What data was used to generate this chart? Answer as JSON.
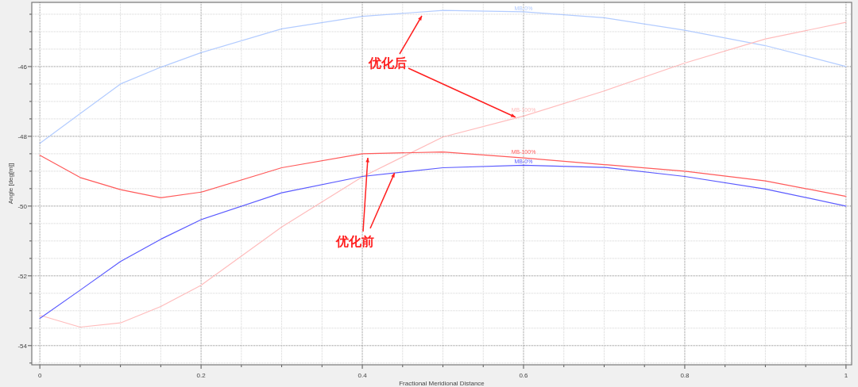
{
  "chart_data": {
    "type": "line",
    "xlabel": "Fractional Meridional Distance",
    "ylabel": "Angle [deg[m]]",
    "x": [
      0,
      0.05,
      0.1,
      0.15,
      0.2,
      0.3,
      0.4,
      0.5,
      0.6,
      0.7,
      0.8,
      0.9,
      1
    ],
    "series": [
      {
        "name": "MB-0%",
        "color": "#b3ccff",
        "values": [
          -48.2,
          -47.35,
          -46.5,
          -46.02,
          -45.6,
          -44.92,
          -44.56,
          -44.39,
          -44.43,
          -44.6,
          -44.96,
          -45.4,
          -46.0
        ]
      },
      {
        "name": "MB-100%",
        "color": "#ffbcbc",
        "values": [
          -53.13,
          -53.47,
          -53.35,
          -52.88,
          -52.27,
          -50.6,
          -49.16,
          -48.02,
          -47.42,
          -46.7,
          -45.9,
          -45.21,
          -44.73
        ]
      },
      {
        "name": "MB-100%",
        "color": "#ff5a5a",
        "values": [
          -48.54,
          -49.18,
          -49.53,
          -49.76,
          -49.6,
          -48.9,
          -48.5,
          -48.45,
          -48.62,
          -48.81,
          -49.0,
          -49.28,
          -49.72
        ]
      },
      {
        "name": "MB-0%",
        "color": "#5a5aff",
        "values": [
          -53.22,
          -52.41,
          -51.59,
          -50.95,
          -50.39,
          -49.62,
          -49.15,
          -48.9,
          -48.83,
          -48.89,
          -49.15,
          -49.51,
          -50.0
        ]
      }
    ],
    "xlim": [
      -0.01,
      1.007
    ],
    "ylim": [
      -54.55,
      -44.16
    ],
    "xticks": [
      0,
      {
        "value": 0.05,
        "label": null
      },
      {
        "value": 0.1,
        "label": null
      },
      {
        "value": 0.15,
        "label": null
      },
      0.2,
      {
        "value": 0.25,
        "label": null
      },
      {
        "value": 0.3,
        "label": null
      },
      {
        "value": 0.35,
        "label": null
      },
      0.4,
      {
        "value": 0.45,
        "label": null
      },
      {
        "value": 0.5,
        "label": null
      },
      {
        "value": 0.55,
        "label": null
      },
      0.6,
      {
        "value": 0.65,
        "label": null
      },
      {
        "value": 0.7,
        "label": null
      },
      {
        "value": 0.75,
        "label": null
      },
      0.8,
      {
        "value": 0.85,
        "label": null
      },
      {
        "value": 0.9,
        "label": null
      },
      {
        "value": 0.95,
        "label": null
      },
      1
    ],
    "yticks": [
      {
        "value": -54.5,
        "label": null
      },
      -54,
      {
        "value": -53.5,
        "label": null
      },
      {
        "value": -53,
        "label": null
      },
      {
        "value": -52.5,
        "label": null
      },
      -52,
      {
        "value": -51.5,
        "label": null
      },
      {
        "value": -51,
        "label": null
      },
      {
        "value": -50.5,
        "label": null
      },
      -50,
      {
        "value": -49.5,
        "label": null
      },
      {
        "value": -49,
        "label": null
      },
      {
        "value": -48.5,
        "label": null
      },
      -48,
      {
        "value": -47.5,
        "label": null
      },
      {
        "value": -47,
        "label": null
      },
      {
        "value": -46.5,
        "label": null
      },
      -46,
      {
        "value": -45.5,
        "label": null
      },
      {
        "value": -45,
        "label": null
      },
      {
        "value": -44.5,
        "label": null
      }
    ],
    "grid": true,
    "marker": "none",
    "line_style": "solid",
    "annotations": [
      {
        "text": "优化后",
        "x": 0.59,
        "y": -47.45
      },
      {
        "text": "优化前",
        "x": 0.44,
        "y": -49.05
      }
    ]
  }
}
